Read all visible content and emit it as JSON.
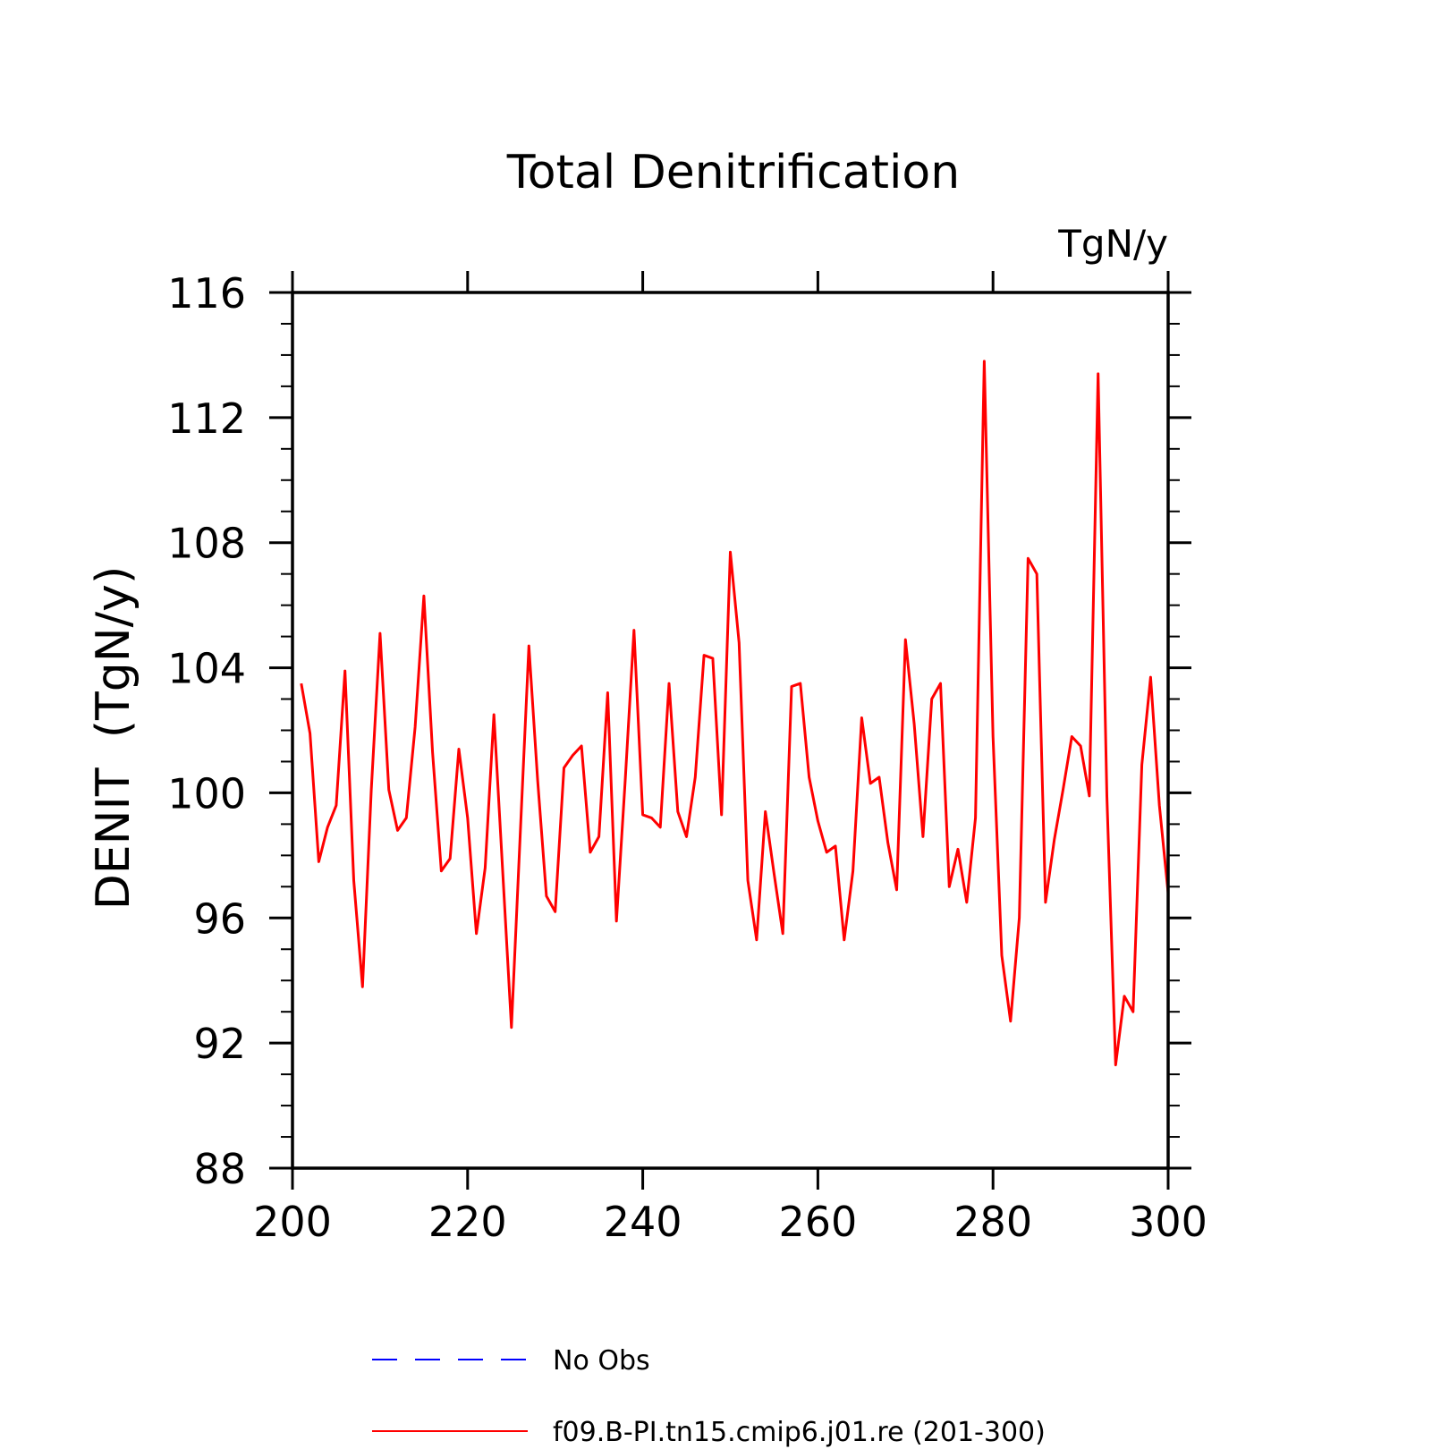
{
  "chart_data": {
    "type": "line",
    "title": "Total Denitrification",
    "units_label": "TgN/y",
    "ylabel": "DENIT  (TgN/y)",
    "xlabel": "",
    "xlim": [
      200,
      300
    ],
    "ylim": [
      88,
      116
    ],
    "x_ticks": [
      200,
      220,
      240,
      260,
      280,
      300
    ],
    "y_ticks": [
      88,
      92,
      96,
      100,
      104,
      108,
      112,
      116
    ],
    "x_tick_labels": [
      "200",
      "220",
      "240",
      "260",
      "280",
      "300"
    ],
    "y_tick_labels": [
      "88",
      "92",
      "96",
      "100",
      "104",
      "108",
      "112",
      "116"
    ],
    "legend": {
      "placement": "bottom",
      "entries": [
        {
          "label": "No Obs",
          "color": "#0000ff",
          "style": "dashed"
        },
        {
          "label": "f09.B-PI.tn15.cmip6.j01.re (201-300)",
          "color": "#ff0000",
          "style": "solid"
        }
      ]
    },
    "series": [
      {
        "name": "f09.B-PI.tn15.cmip6.j01.re (201-300)",
        "color": "#ff0000",
        "x": [
          201,
          202,
          203,
          204,
          205,
          206,
          207,
          208,
          209,
          210,
          211,
          212,
          213,
          214,
          215,
          216,
          217,
          218,
          219,
          220,
          221,
          222,
          223,
          224,
          225,
          226,
          227,
          228,
          229,
          230,
          231,
          232,
          233,
          234,
          235,
          236,
          237,
          238,
          239,
          240,
          241,
          242,
          243,
          244,
          245,
          246,
          247,
          248,
          249,
          250,
          251,
          252,
          253,
          254,
          255,
          256,
          257,
          258,
          259,
          260,
          261,
          262,
          263,
          264,
          265,
          266,
          267,
          268,
          269,
          270,
          271,
          272,
          273,
          274,
          275,
          276,
          277,
          278,
          279,
          280,
          281,
          282,
          283,
          284,
          285,
          286,
          287,
          288,
          289,
          290,
          291,
          292,
          293,
          294,
          295,
          296,
          297,
          298,
          299,
          300
        ],
        "values": [
          103.5,
          101.9,
          97.8,
          98.9,
          99.6,
          103.9,
          97.2,
          93.8,
          100.1,
          105.1,
          100.1,
          98.8,
          99.2,
          102.1,
          106.3,
          101.3,
          97.5,
          97.9,
          101.4,
          99.2,
          95.5,
          97.6,
          102.5,
          97.5,
          92.5,
          98.6,
          104.7,
          100.4,
          96.7,
          96.2,
          100.8,
          101.2,
          101.5,
          98.1,
          98.6,
          103.2,
          95.9,
          100.4,
          105.2,
          99.3,
          99.2,
          98.9,
          103.5,
          99.4,
          98.6,
          100.5,
          104.4,
          104.3,
          99.3,
          107.7,
          104.8,
          97.2,
          95.3,
          99.4,
          97.4,
          95.5,
          103.4,
          103.5,
          100.5,
          99.1,
          98.1,
          98.3,
          95.3,
          97.5,
          102.4,
          100.3,
          100.5,
          98.4,
          96.9,
          104.9,
          102.2,
          98.6,
          103.0,
          103.5,
          97.0,
          98.2,
          96.5,
          99.2,
          113.8,
          101.8,
          94.8,
          92.7,
          96.0,
          107.5,
          107.0,
          96.5,
          98.5,
          100.1,
          101.8,
          101.5,
          99.9,
          113.4,
          99.9,
          91.3,
          93.5,
          93.0,
          100.9,
          103.7,
          99.6,
          96.8
        ]
      }
    ]
  }
}
